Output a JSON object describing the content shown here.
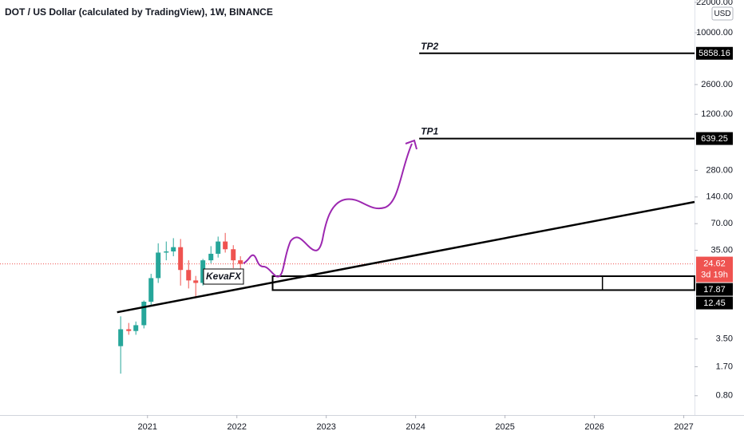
{
  "header": {
    "title": "DOT / US Dollar (calculated by TradingView), 1W, BINANCE",
    "currency": "USD"
  },
  "chart_data": {
    "type": "candlestick",
    "log_scale": true,
    "xlim": [
      2019.35,
      2027.12
    ],
    "xticks": [
      2021,
      2022,
      2023,
      2024,
      2025,
      2026,
      2027
    ],
    "ylim": [
      0.484,
      23400
    ],
    "yticks": [
      {
        "value": 22000,
        "label": "22000.00"
      },
      {
        "value": 10000,
        "label": "10000.00"
      },
      {
        "value": 2600,
        "label": "2600.00"
      },
      {
        "value": 1200,
        "label": "1200.00"
      },
      {
        "value": 280,
        "label": "280.00"
      },
      {
        "value": 140,
        "label": "140.00"
      },
      {
        "value": 70,
        "label": "70.00"
      },
      {
        "value": 35,
        "label": "35.00"
      },
      {
        "value": 3.5,
        "label": "3.50"
      },
      {
        "value": 1.7,
        "label": "1.70"
      },
      {
        "value": 0.8,
        "label": "0.80"
      }
    ],
    "up_color": "#26a69a",
    "down_color": "#ef5350",
    "candles": {
      "x": [
        2020.7,
        2020.79,
        2020.87,
        2020.96,
        2021.04,
        2021.12,
        2021.21,
        2021.29,
        2021.37,
        2021.46,
        2021.54,
        2021.62,
        2021.71,
        2021.79,
        2021.87,
        2021.96,
        2022.04
      ],
      "open": [
        2.9,
        4.5,
        4.3,
        5.0,
        9.2,
        17,
        33,
        34,
        38,
        21,
        16,
        15,
        27,
        32,
        44,
        36,
        27
      ],
      "high": [
        6.3,
        5.3,
        5.5,
        9.5,
        19,
        42,
        44,
        48,
        47,
        27,
        18,
        28,
        39,
        50,
        55,
        40,
        30
      ],
      "low": [
        1.42,
        3.9,
        3.9,
        4.6,
        8.5,
        15,
        27,
        30,
        14,
        13,
        10.5,
        14,
        25,
        29,
        33,
        22,
        20
      ],
      "close": [
        4.5,
        4.3,
        5.0,
        9.2,
        17,
        33,
        34,
        38,
        21,
        16,
        15,
        27,
        32,
        44,
        36,
        27,
        24.62
      ]
    },
    "last_price": 24.62,
    "countdown": "3d 19h",
    "last_price_color": "#ef5350",
    "trendline": {
      "x": [
        2020.66,
        2027.12
      ],
      "y": [
        7.0,
        123
      ]
    },
    "targets": [
      {
        "name": "TP2",
        "value": 5858.16,
        "x_start": 2024.04
      },
      {
        "name": "TP1",
        "value": 639.25,
        "x_start": 2024.04
      }
    ],
    "zone": {
      "x": [
        2022.4,
        2027.12
      ],
      "top": 17.87,
      "bottom": 12.45,
      "divider_x": 2026.09
    },
    "drawing_label": "KevaFX"
  }
}
